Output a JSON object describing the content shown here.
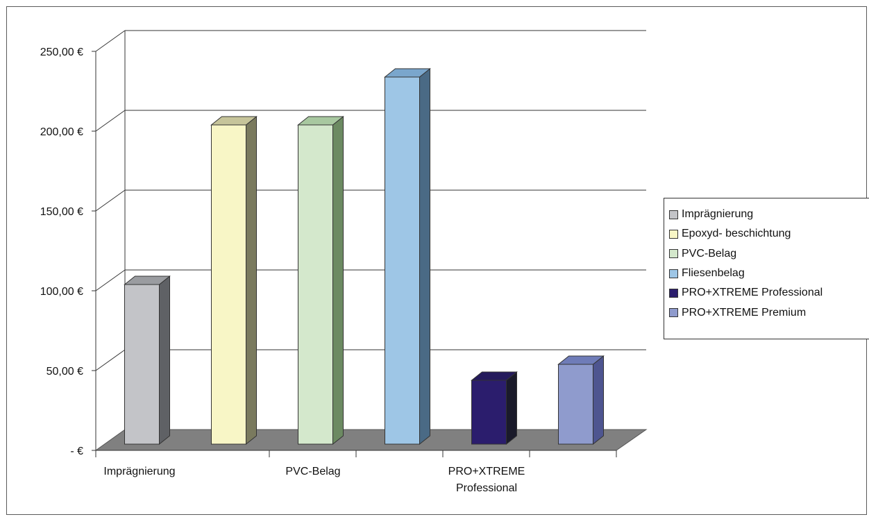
{
  "chart_data": {
    "type": "bar",
    "categories": [
      "Imprägnierung",
      "Epoxyd- beschichtung",
      "PVC-Belag",
      "Fliesenbelag",
      "PRO+XTREME Professional",
      "PRO+XTREME Premium"
    ],
    "values": [
      100,
      200,
      200,
      230,
      40,
      50
    ],
    "x_tick_labels": [
      "Imprägnierung",
      "PVC-Belag",
      "PRO+XTREME Professional"
    ],
    "y_tick_labels": [
      "-   €",
      "50,00 €",
      "100,00 €",
      "150,00 €",
      "200,00 €",
      "250,00 €"
    ],
    "y_ticks": [
      0,
      50,
      100,
      150,
      200,
      250
    ],
    "ylim": [
      0,
      250
    ],
    "title": "",
    "xlabel": "",
    "ylabel": "",
    "grid": true,
    "style": "3d-column",
    "legend_position": "right",
    "legend": [
      {
        "label": "Imprägnierung",
        "color": "#c3c4c8"
      },
      {
        "label": "Epoxyd- beschichtung",
        "color": "#f8f6c6"
      },
      {
        "label": "PVC-Belag",
        "color": "#d4e8cc"
      },
      {
        "label": "Fliesenbelag",
        "color": "#9ec6e6"
      },
      {
        "label": "PRO+XTREME Professional",
        "color": "#2b1d6d"
      },
      {
        "label": "PRO+XTREME Premium",
        "color": "#8f9bcd"
      }
    ],
    "colors": {
      "floor": "#808080",
      "side_dark": [
        "#5f6165",
        "#7a7a5e",
        "#6c8a62",
        "#4a6a85",
        "#1a1a2a",
        "#4e5590"
      ],
      "top_tint": [
        "#9a9ca0",
        "#c6c49a",
        "#a8c8a0",
        "#7aa6cc",
        "#241a5c",
        "#6f7cb8"
      ],
      "grid": "#333333"
    }
  }
}
